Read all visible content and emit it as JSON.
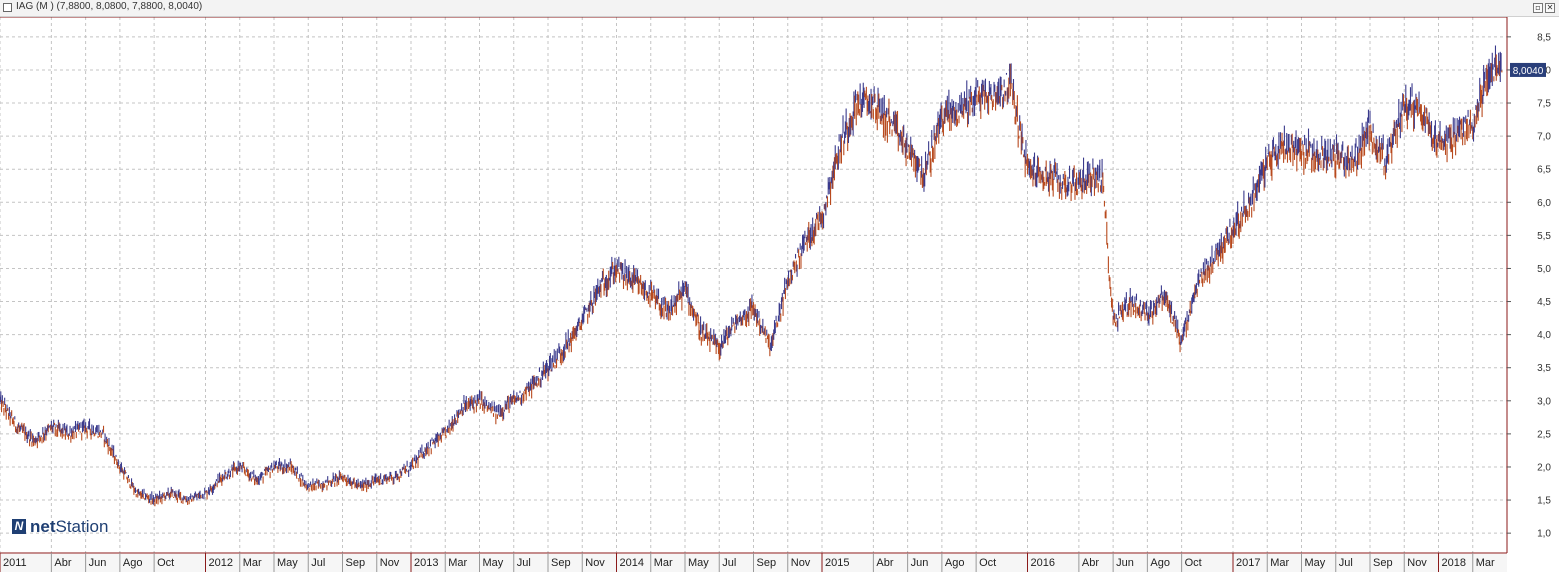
{
  "window": {
    "title": "IAG (M ) (7,8800, 8,0800, 7,8800, 8,0040)",
    "min_icon": "minimize-icon",
    "close_icon": "close-icon"
  },
  "logo": {
    "net": "net",
    "station": "Station"
  },
  "chart_data": {
    "type": "line",
    "ylim": [
      0.7,
      8.8
    ],
    "y_ticks": [
      "1,0",
      "1,5",
      "2,0",
      "2,5",
      "3,0",
      "3,5",
      "4,0",
      "4,5",
      "5,0",
      "5,5",
      "6,0",
      "6,5",
      "7,0",
      "7,5",
      "8,0",
      "8,5"
    ],
    "y_tick_values": [
      1.0,
      1.5,
      2.0,
      2.5,
      3.0,
      3.5,
      4.0,
      4.5,
      5.0,
      5.5,
      6.0,
      6.5,
      7.0,
      7.5,
      8.0,
      8.5
    ],
    "x_labels": [
      "2011",
      "Abr",
      "Jun",
      "Ago",
      "Oct",
      "2012",
      "Mar",
      "May",
      "Jul",
      "Sep",
      "Nov",
      "2013",
      "Mar",
      "May",
      "Jul",
      "Sep",
      "Nov",
      "2014",
      "Mar",
      "May",
      "Jul",
      "Sep",
      "Nov",
      "2015",
      "Abr",
      "Jun",
      "Ago",
      "Oct",
      "2016",
      "Abr",
      "Jun",
      "Ago",
      "Oct",
      "2017",
      "Mar",
      "May",
      "Jul",
      "Sep",
      "Nov",
      "2018",
      "Mar"
    ],
    "x_label_months": [
      0,
      3,
      5,
      7,
      9,
      12,
      14,
      16,
      18,
      20,
      22,
      24,
      26,
      28,
      30,
      32,
      34,
      36,
      38,
      40,
      42,
      44,
      46,
      48,
      51,
      53,
      55,
      57,
      60,
      63,
      65,
      67,
      69,
      72,
      74,
      76,
      78,
      80,
      82,
      84,
      86
    ],
    "x_month_count": 88,
    "last_value_label": "8,0040",
    "grid": true,
    "colors": {
      "up": "#3a3a8c",
      "down": "#b84a1e",
      "badge": "#2a3f7a",
      "frame": "#8b1a1a"
    },
    "series": [
      {
        "x": [
          0,
          1,
          2,
          3,
          4,
          5,
          6,
          7,
          8,
          9,
          10,
          11,
          12,
          13,
          14,
          15,
          16,
          17,
          18,
          19,
          20,
          21,
          22,
          23,
          24,
          25,
          26,
          27,
          28,
          29,
          30,
          31,
          32,
          33,
          34,
          35,
          36,
          37,
          38,
          39,
          40,
          41,
          42,
          43,
          44,
          45,
          46,
          47,
          48,
          49,
          50,
          51,
          52,
          53,
          54,
          55,
          56,
          57,
          58,
          59,
          60,
          61,
          62,
          63,
          64,
          64.4,
          65,
          66,
          67,
          68,
          69,
          70,
          71,
          72,
          73,
          74,
          75,
          76,
          77,
          78,
          79,
          80,
          81,
          82,
          83,
          84,
          85,
          86,
          87,
          87.7
        ],
        "y": [
          3.0,
          2.6,
          2.4,
          2.6,
          2.5,
          2.6,
          2.5,
          2.0,
          1.6,
          1.5,
          1.6,
          1.5,
          1.6,
          1.85,
          2.0,
          1.8,
          2.0,
          2.0,
          1.7,
          1.75,
          1.85,
          1.7,
          1.8,
          1.85,
          2.0,
          2.3,
          2.5,
          2.9,
          3.0,
          2.8,
          3.0,
          3.2,
          3.5,
          3.8,
          4.2,
          4.7,
          5.0,
          4.8,
          4.6,
          4.3,
          4.7,
          4.0,
          3.8,
          4.2,
          4.4,
          3.8,
          4.8,
          5.4,
          5.8,
          6.8,
          7.5,
          7.5,
          7.2,
          6.8,
          6.4,
          7.3,
          7.4,
          7.6,
          7.6,
          7.8,
          6.5,
          6.4,
          6.3,
          6.3,
          6.4,
          6.3,
          4.2,
          4.5,
          4.3,
          4.6,
          3.9,
          4.8,
          5.2,
          5.6,
          6.0,
          6.6,
          6.9,
          6.8,
          6.7,
          6.7,
          6.6,
          7.1,
          6.6,
          7.5,
          7.4,
          6.9,
          7.0,
          7.2,
          8.0,
          8.0
        ]
      }
    ]
  }
}
